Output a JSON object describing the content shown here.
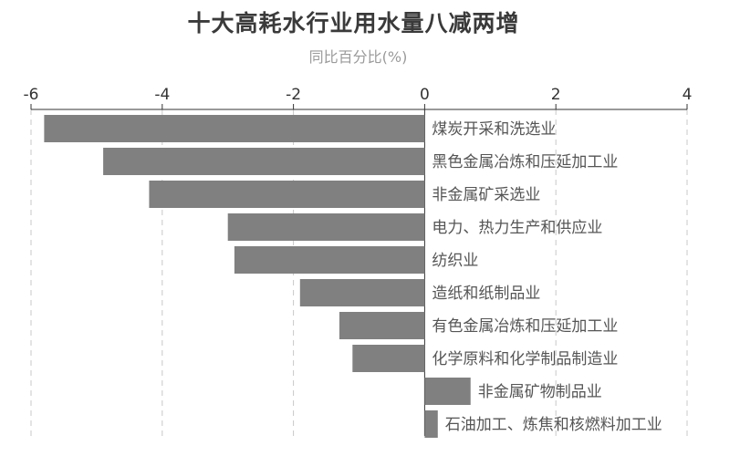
{
  "chart_data": {
    "type": "bar",
    "orientation": "horizontal",
    "title": "十大高耗水行业用水量八减两增",
    "subtitle": "同比百分比(%)",
    "xlim": [
      -6,
      4
    ],
    "xticks": [
      -6,
      -4,
      -2,
      0,
      2,
      4
    ],
    "tick_labels": [
      "-6",
      "-4",
      "-2",
      "0",
      "2",
      "4"
    ],
    "axis_position": "top",
    "grid": "vertical dashed",
    "bar_color": "#808080",
    "categories": [
      "煤炭开采和洗选业",
      "黑色金属冶炼和压延加工业",
      "非金属矿采选业",
      "电力、热力生产和供应业",
      "纺织业",
      "造纸和纸制品业",
      "有色金属冶炼和压延加工业",
      "化学原料和化学制品制造业",
      "非金属矿物制品业",
      "石油加工、炼焦和核燃料加工业"
    ],
    "values": [
      -5.8,
      -4.9,
      -4.2,
      -3.0,
      -2.9,
      -1.9,
      -1.3,
      -1.1,
      0.7,
      0.2
    ]
  }
}
